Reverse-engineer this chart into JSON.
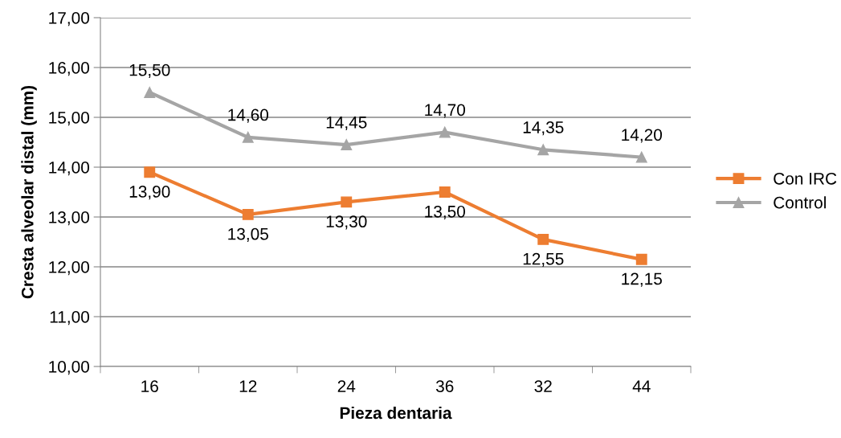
{
  "chart_data": {
    "type": "line",
    "xlabel": "Pieza dentaria",
    "ylabel": "Cresta alveolar distal (mm)",
    "categories": [
      "16",
      "12",
      "24",
      "36",
      "32",
      "44"
    ],
    "series": [
      {
        "name": "Con IRC",
        "color": "#ed7d31",
        "marker": "square",
        "values": [
          13.9,
          13.05,
          13.3,
          13.5,
          12.55,
          12.15
        ],
        "value_labels": [
          "13,90",
          "13,05",
          "13,30",
          "13,50",
          "12,55",
          "12,15"
        ]
      },
      {
        "name": "Control",
        "color": "#a5a5a5",
        "marker": "triangle",
        "values": [
          15.5,
          14.6,
          14.45,
          14.7,
          14.35,
          14.2
        ],
        "value_labels": [
          "15,50",
          "14,60",
          "14,45",
          "14,70",
          "14,35",
          "14,20"
        ]
      }
    ],
    "ylim": [
      10,
      17
    ],
    "yticks": [
      {
        "value": 10,
        "label": "10,00"
      },
      {
        "value": 11,
        "label": "11,00"
      },
      {
        "value": 12,
        "label": "12,00"
      },
      {
        "value": 13,
        "label": "13,00"
      },
      {
        "value": 14,
        "label": "14,00"
      },
      {
        "value": 15,
        "label": "15,00"
      },
      {
        "value": 16,
        "label": "16,00"
      },
      {
        "value": 17,
        "label": "17,00"
      }
    ],
    "grid": "y",
    "legend": "right",
    "line_style": "solid"
  }
}
